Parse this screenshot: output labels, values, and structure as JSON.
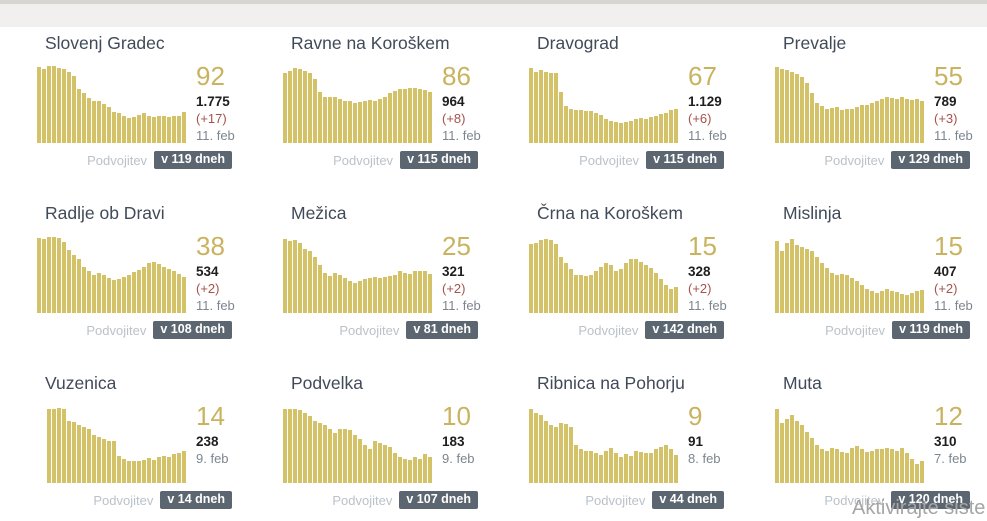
{
  "labels": {
    "doubling": "Podvojitev"
  },
  "watermark": "Aktivirajte siste",
  "colors": {
    "bar": "#d3c267",
    "accent": "#c9b35f",
    "title": "#404a59",
    "total": "#1e1e1e",
    "change": "#a6524c",
    "muted": "#7d868f",
    "label": "#bac2c9",
    "badge-bg": "#5b6671",
    "watermark": "#a5a5a5"
  },
  "cards": [
    {
      "title": "Slovenj Gradec",
      "active": "92",
      "total": "1.775",
      "change": "(+17)",
      "date": "11. feb",
      "doubling": "v 119 dneh",
      "bars": [
        95,
        92,
        96,
        96,
        94,
        93,
        89,
        84,
        68,
        62,
        56,
        53,
        53,
        49,
        45,
        39,
        37,
        34,
        31,
        32,
        35,
        37,
        34,
        33,
        34,
        34,
        33,
        34,
        34,
        39
      ]
    },
    {
      "title": "Ravne na Koroškem",
      "active": "86",
      "total": "964",
      "change": "(+8)",
      "date": "11. feb",
      "doubling": "v 115 dneh",
      "bars": [
        88,
        90,
        94,
        92,
        90,
        88,
        80,
        64,
        58,
        58,
        57,
        55,
        53,
        52,
        50,
        51,
        53,
        54,
        52,
        55,
        58,
        62,
        65,
        67,
        68,
        69,
        69,
        68,
        66,
        64
      ]
    },
    {
      "title": "Dravograd",
      "active": "67",
      "total": "1.129",
      "change": "(+6)",
      "date": "11. feb",
      "doubling": "v 115 dneh",
      "bars": [
        94,
        89,
        91,
        89,
        88,
        87,
        64,
        46,
        42,
        41,
        41,
        40,
        40,
        38,
        35,
        30,
        27,
        26,
        25,
        26,
        28,
        30,
        31,
        30,
        32,
        34,
        36,
        38,
        41,
        43
      ]
    },
    {
      "title": "Prevalje",
      "active": "55",
      "total": "789",
      "change": "(+3)",
      "date": "11. feb",
      "doubling": "v 129 dneh",
      "bars": [
        95,
        93,
        91,
        89,
        86,
        83,
        75,
        62,
        50,
        46,
        43,
        44,
        45,
        41,
        42,
        43,
        45,
        47,
        48,
        50,
        52,
        55,
        57,
        56,
        55,
        57,
        55,
        54,
        55,
        52
      ]
    },
    {
      "title": "Radlje ob Dravi",
      "active": "38",
      "total": "534",
      "change": "(+2)",
      "date": "11. feb",
      "doubling": "v 108 dneh",
      "bars": [
        94,
        93,
        95,
        95,
        94,
        89,
        79,
        72,
        68,
        58,
        52,
        48,
        50,
        47,
        44,
        41,
        43,
        45,
        48,
        51,
        54,
        58,
        62,
        64,
        61,
        58,
        55,
        52,
        49,
        45
      ]
    },
    {
      "title": "Mežica",
      "active": "25",
      "total": "321",
      "change": "(+2)",
      "date": "11. feb",
      "doubling": "v 81 dneh",
      "bars": [
        92,
        90,
        91,
        88,
        80,
        78,
        70,
        60,
        50,
        46,
        50,
        48,
        44,
        40,
        38,
        40,
        42,
        44,
        45,
        44,
        45,
        46,
        48,
        52,
        50,
        49,
        52,
        53,
        52,
        49
      ]
    },
    {
      "title": "Črna na Koroškem",
      "active": "15",
      "total": "328",
      "change": "(+2)",
      "date": "11. feb",
      "doubling": "v 142 dneh",
      "bars": [
        86,
        87,
        91,
        92,
        91,
        86,
        70,
        62,
        55,
        48,
        47,
        46,
        48,
        52,
        58,
        62,
        60,
        52,
        55,
        62,
        68,
        67,
        64,
        60,
        56,
        50,
        42,
        35,
        30,
        33
      ]
    },
    {
      "title": "Mislinja",
      "active": "15",
      "total": "407",
      "change": "(+2)",
      "date": "11. feb",
      "doubling": "v 119 dneh",
      "bars": [
        90,
        78,
        88,
        92,
        85,
        82,
        80,
        78,
        70,
        63,
        56,
        50,
        48,
        49,
        47,
        44,
        40,
        35,
        30,
        28,
        25,
        28,
        30,
        28,
        26,
        24,
        22,
        25,
        27,
        29
      ]
    },
    {
      "title": "Vuzenica",
      "active": "14",
      "total": "238",
      "change": "",
      "date": "9. feb",
      "doubling": "v 14 dneh",
      "bars": [
        93,
        93,
        94,
        93,
        78,
        76,
        73,
        70,
        67,
        60,
        57,
        55,
        53,
        52,
        34,
        30,
        28,
        27,
        28,
        29,
        31,
        29,
        33,
        34,
        33,
        36,
        38,
        40
      ]
    },
    {
      "title": "Podvelka",
      "active": "10",
      "total": "183",
      "change": "",
      "date": "9. feb",
      "doubling": "v 107 dneh",
      "bars": [
        93,
        93,
        93,
        91,
        88,
        84,
        78,
        75,
        72,
        68,
        63,
        68,
        68,
        66,
        60,
        55,
        48,
        42,
        52,
        50,
        48,
        45,
        38,
        32,
        30,
        29,
        32,
        30,
        36,
        32
      ]
    },
    {
      "title": "Ribnica na Pohorju",
      "active": "9",
      "total": "91",
      "change": "",
      "date": "8. feb",
      "doubling": "v 44 dneh",
      "bars": [
        93,
        88,
        85,
        78,
        72,
        70,
        75,
        74,
        70,
        48,
        42,
        40,
        40,
        37,
        35,
        40,
        44,
        38,
        32,
        36,
        34,
        40,
        39,
        38,
        37,
        42,
        45,
        47,
        43,
        35
      ]
    },
    {
      "title": "Muta",
      "active": "12",
      "total": "310",
      "change": "",
      "date": "7. feb",
      "doubling": "v 120 dneh",
      "bars": [
        93,
        75,
        80,
        85,
        77,
        72,
        64,
        56,
        48,
        42,
        40,
        44,
        42,
        39,
        38,
        44,
        46,
        43,
        39,
        40,
        42,
        43,
        44,
        42,
        40,
        44,
        38,
        30,
        24,
        28
      ]
    }
  ]
}
